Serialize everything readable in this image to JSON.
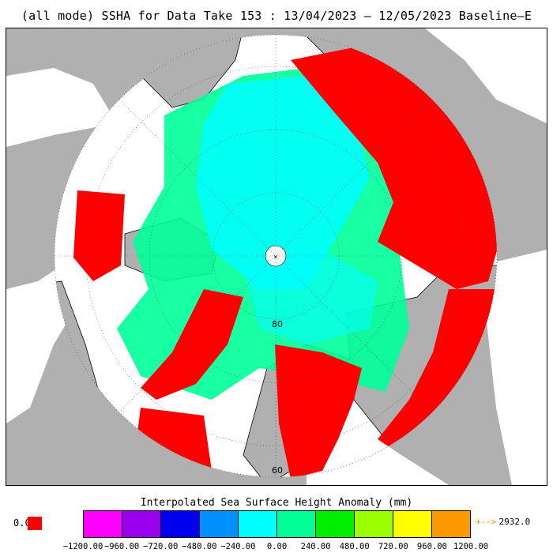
{
  "title": "(all mode) SSHA for Data Take 153 : 13/04/2023 — 12/05/2023 Baseline—E",
  "map": {
    "projection": "north-polar-stereographic",
    "latitude_labels": [
      "80",
      "60"
    ],
    "pole_marker": "×",
    "colors": {
      "land": "#b0b0b0",
      "ocean_background": "#ffffff",
      "zero_value": "#ff0000"
    }
  },
  "legend": {
    "title": "Interpolated Sea Surface Height Anomaly (mm)",
    "zero_label": "0.0",
    "zero_color": "#ff0000",
    "overflow_arrow": "+-->",
    "overflow_value": "2932.0",
    "overflow_color": "#ff8c00",
    "colors": [
      "#ff00ff",
      "#9900ee",
      "#0000ee",
      "#0090ff",
      "#00ffff",
      "#00ff99",
      "#00ee00",
      "#99ff00",
      "#ffff00",
      "#ff9900"
    ],
    "ticks": [
      "−1200.00",
      "−960.00",
      "−720.00",
      "−480.00",
      "−240.00",
      "0.00",
      "240.00",
      "480.00",
      "720.00",
      "960.00",
      "1200.00"
    ]
  }
}
